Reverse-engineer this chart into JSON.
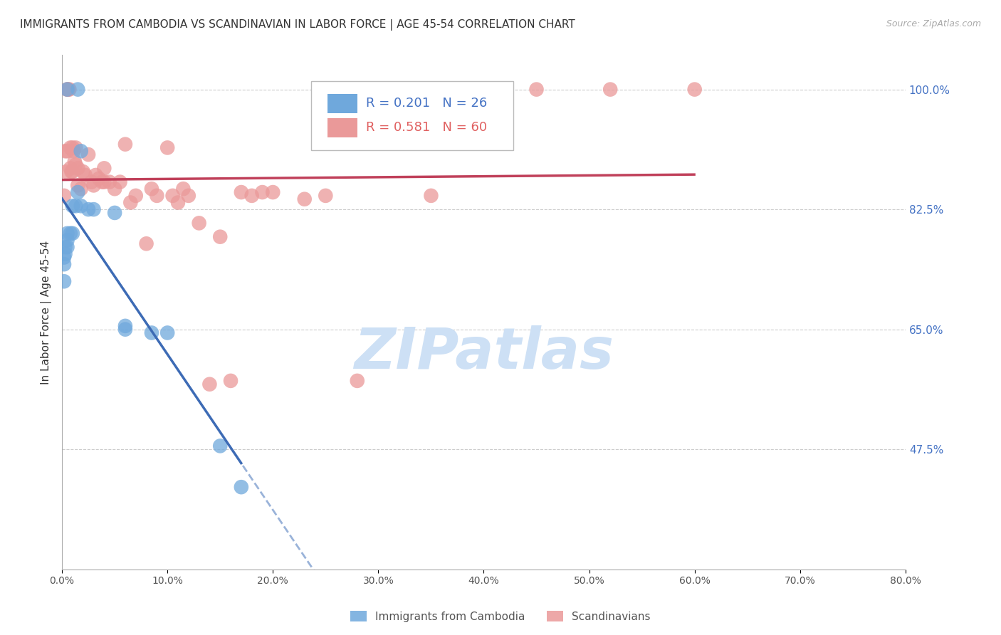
{
  "title": "IMMIGRANTS FROM CAMBODIA VS SCANDINAVIAN IN LABOR FORCE | AGE 45-54 CORRELATION CHART",
  "source": "Source: ZipAtlas.com",
  "ylabel": "In Labor Force | Age 45-54",
  "right_yticks": [
    47.5,
    65.0,
    82.5,
    100.0
  ],
  "right_ytick_labels": [
    "47.5%",
    "65.0%",
    "82.5%",
    "100.0%"
  ],
  "xmin": 0.0,
  "xmax": 80.0,
  "ymin": 30.0,
  "ymax": 105.0,
  "cambodia_color": "#6fa8dc",
  "scandinavian_color": "#ea9999",
  "cambodia_R": 0.201,
  "cambodia_N": 26,
  "scandinavian_R": 0.581,
  "scandinavian_N": 60,
  "legend_label_cambodia": "Immigrants from Cambodia",
  "legend_label_scandinavian": "Scandinavians",
  "cambodia_x": [
    0.5,
    1.5,
    1.8,
    1.5,
    1.8,
    1.3,
    1.0,
    1.0,
    0.8,
    0.5,
    0.5,
    0.5,
    0.3,
    0.3,
    0.2,
    0.2,
    0.2,
    2.5,
    3.0,
    5.0,
    6.0,
    6.0,
    8.5,
    10.0,
    15.0,
    17.0
  ],
  "cambodia_y": [
    100.0,
    100.0,
    91.0,
    85.0,
    83.0,
    83.0,
    83.0,
    79.0,
    79.0,
    79.0,
    78.0,
    77.0,
    77.0,
    76.0,
    75.5,
    74.5,
    72.0,
    82.5,
    82.5,
    82.0,
    65.0,
    65.5,
    64.5,
    64.5,
    48.0,
    42.0
  ],
  "scandinavian_x": [
    0.2,
    0.3,
    0.4,
    0.5,
    0.5,
    0.5,
    0.6,
    0.7,
    0.8,
    0.8,
    0.9,
    1.0,
    1.0,
    1.1,
    1.2,
    1.3,
    1.3,
    1.5,
    1.5,
    1.8,
    2.0,
    2.2,
    2.5,
    2.8,
    3.0,
    3.2,
    3.5,
    3.8,
    4.0,
    4.0,
    4.5,
    5.0,
    5.5,
    6.0,
    6.5,
    7.0,
    8.0,
    8.5,
    9.0,
    10.0,
    10.5,
    11.0,
    11.5,
    12.0,
    13.0,
    14.0,
    15.0,
    16.0,
    17.0,
    18.0,
    19.0,
    20.0,
    23.0,
    25.0,
    28.0,
    35.0,
    38.0,
    45.0,
    52.0,
    60.0
  ],
  "scandinavian_y": [
    84.5,
    91.0,
    88.0,
    100.0,
    100.0,
    91.0,
    100.0,
    100.0,
    91.5,
    88.5,
    88.0,
    91.5,
    88.0,
    91.0,
    89.5,
    91.5,
    89.0,
    88.5,
    86.0,
    85.5,
    88.0,
    87.5,
    90.5,
    86.5,
    86.0,
    87.5,
    87.0,
    86.5,
    88.5,
    86.5,
    86.5,
    85.5,
    86.5,
    92.0,
    83.5,
    84.5,
    77.5,
    85.5,
    84.5,
    91.5,
    84.5,
    83.5,
    85.5,
    84.5,
    80.5,
    57.0,
    78.5,
    57.5,
    85.0,
    84.5,
    85.0,
    85.0,
    84.0,
    84.5,
    57.5,
    84.5,
    100.0,
    100.0,
    100.0,
    100.0
  ],
  "title_fontsize": 11,
  "axis_label_fontsize": 11,
  "tick_fontsize": 10,
  "legend_fontsize": 13,
  "watermark_text": "ZIPatlas",
  "watermark_color": "#cde0f5",
  "background_color": "#ffffff",
  "grid_color": "#cccccc"
}
